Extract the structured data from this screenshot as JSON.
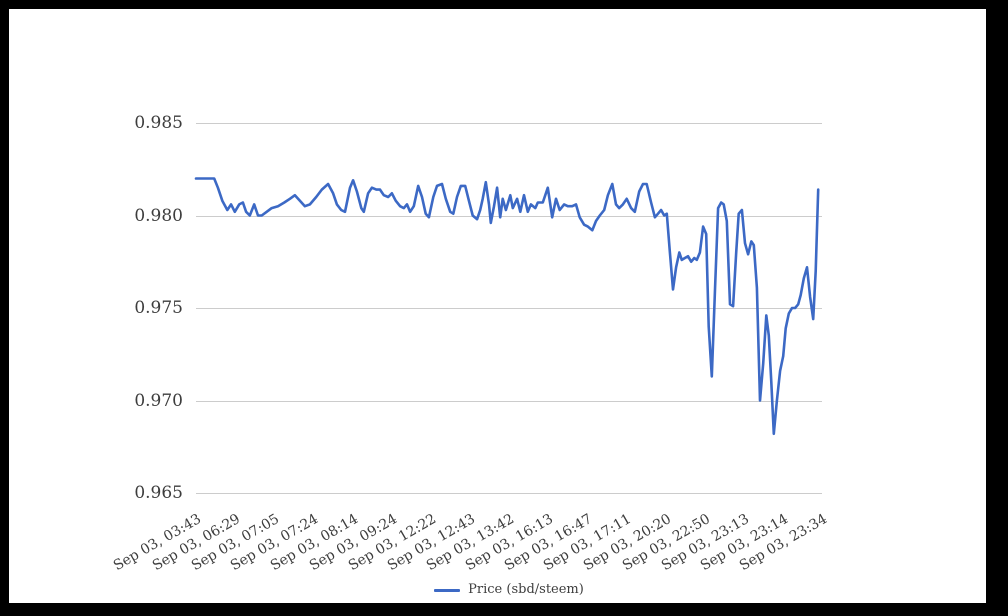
{
  "chart_data": {
    "type": "line",
    "title": "",
    "xlabel": "",
    "ylabel": "",
    "legend_label": "Price (sbd/steem)",
    "legend_position": "bottom-center",
    "grid": "horizontal-only",
    "ylim": [
      0.965,
      0.9875
    ],
    "y_axis": {
      "ticks": [
        0.985,
        0.98,
        0.975,
        0.97,
        0.965
      ],
      "tick_labels": [
        "0.985",
        "0.980",
        "0.975",
        "0.970",
        "0.965"
      ]
    },
    "x_axis": {
      "tick_labels": [
        "Sep 03, 03:43",
        "Sep 03, 06:29",
        "Sep 03, 07:05",
        "Sep 03, 07:24",
        "Sep 03, 08:14",
        "Sep 03, 09:24",
        "Sep 03, 12:22",
        "Sep 03, 12:43",
        "Sep 03, 13:42",
        "Sep 03, 16:13",
        "Sep 03, 16:47",
        "Sep 03, 17:11",
        "Sep 03, 20:20",
        "Sep 03, 22:50",
        "Sep 03, 23:13",
        "Sep 03, 23:14",
        "Sep 03, 23:34"
      ],
      "label_rotation_deg": -30
    },
    "series": [
      {
        "name": "Price (sbd/steem)",
        "color": "#3c69c5",
        "points": [
          [
            0,
            0.982
          ],
          [
            2.9,
            0.982
          ],
          [
            3.5,
            0.9815
          ],
          [
            4.2,
            0.9808
          ],
          [
            5,
            0.9803
          ],
          [
            5.6,
            0.9806
          ],
          [
            6.2,
            0.9802
          ],
          [
            6.9,
            0.9806
          ],
          [
            7.5,
            0.9807
          ],
          [
            8,
            0.9802
          ],
          [
            8.6,
            0.98
          ],
          [
            9.3,
            0.9806
          ],
          [
            9.9,
            0.98
          ],
          [
            10.5,
            0.98
          ],
          [
            11.3,
            0.9802
          ],
          [
            12.1,
            0.9804
          ],
          [
            13.1,
            0.9805
          ],
          [
            14.1,
            0.9807
          ],
          [
            15,
            0.9809
          ],
          [
            15.8,
            0.9811
          ],
          [
            16.6,
            0.9808
          ],
          [
            17.4,
            0.9805
          ],
          [
            18.2,
            0.9806
          ],
          [
            19.2,
            0.981
          ],
          [
            20.1,
            0.9814
          ],
          [
            21.1,
            0.9817
          ],
          [
            21.9,
            0.9812
          ],
          [
            22.5,
            0.9806
          ],
          [
            23.2,
            0.9803
          ],
          [
            23.8,
            0.9802
          ],
          [
            24.6,
            0.9815
          ],
          [
            25.1,
            0.9819
          ],
          [
            25.7,
            0.9813
          ],
          [
            26.4,
            0.9804
          ],
          [
            26.8,
            0.9802
          ],
          [
            27.5,
            0.9812
          ],
          [
            28.1,
            0.9815
          ],
          [
            28.8,
            0.9814
          ],
          [
            29.4,
            0.9814
          ],
          [
            30,
            0.9811
          ],
          [
            30.7,
            0.981
          ],
          [
            31.3,
            0.9812
          ],
          [
            31.9,
            0.9808
          ],
          [
            32.6,
            0.9805
          ],
          [
            33.2,
            0.9804
          ],
          [
            33.7,
            0.9806
          ],
          [
            34.2,
            0.9802
          ],
          [
            34.8,
            0.9805
          ],
          [
            35.5,
            0.9816
          ],
          [
            36.1,
            0.981
          ],
          [
            36.7,
            0.9801
          ],
          [
            37.2,
            0.9799
          ],
          [
            37.9,
            0.981
          ],
          [
            38.5,
            0.9816
          ],
          [
            39.3,
            0.9817
          ],
          [
            39.9,
            0.9809
          ],
          [
            40.6,
            0.9802
          ],
          [
            41.1,
            0.9801
          ],
          [
            41.7,
            0.981
          ],
          [
            42.3,
            0.9816
          ],
          [
            43,
            0.9816
          ],
          [
            43.6,
            0.9808
          ],
          [
            44.2,
            0.98
          ],
          [
            44.9,
            0.9798
          ],
          [
            45.4,
            0.9803
          ],
          [
            45.8,
            0.9809
          ],
          [
            46.3,
            0.9818
          ],
          [
            46.8,
            0.9806
          ],
          [
            47.1,
            0.9796
          ],
          [
            47.6,
            0.9805
          ],
          [
            48.1,
            0.9815
          ],
          [
            48.6,
            0.9799
          ],
          [
            49,
            0.9809
          ],
          [
            49.5,
            0.9803
          ],
          [
            50.2,
            0.9811
          ],
          [
            50.6,
            0.9804
          ],
          [
            51.3,
            0.9809
          ],
          [
            51.8,
            0.9802
          ],
          [
            52.4,
            0.9811
          ],
          [
            53,
            0.9802
          ],
          [
            53.5,
            0.9806
          ],
          [
            54.2,
            0.9804
          ],
          [
            54.6,
            0.9807
          ],
          [
            55.4,
            0.9807
          ],
          [
            56.2,
            0.9815
          ],
          [
            56.9,
            0.9799
          ],
          [
            57.5,
            0.9809
          ],
          [
            58.1,
            0.9803
          ],
          [
            58.8,
            0.9806
          ],
          [
            59.4,
            0.9805
          ],
          [
            60.1,
            0.9805
          ],
          [
            60.7,
            0.9806
          ],
          [
            61.3,
            0.9799
          ],
          [
            62,
            0.9795
          ],
          [
            62.6,
            0.9794
          ],
          [
            63.3,
            0.9792
          ],
          [
            63.9,
            0.9797
          ],
          [
            64.5,
            0.98
          ],
          [
            65.2,
            0.9803
          ],
          [
            65.8,
            0.9811
          ],
          [
            66.5,
            0.9817
          ],
          [
            67.1,
            0.9806
          ],
          [
            67.6,
            0.9804
          ],
          [
            68.2,
            0.9806
          ],
          [
            68.8,
            0.9809
          ],
          [
            69.5,
            0.9804
          ],
          [
            70.1,
            0.9802
          ],
          [
            70.8,
            0.9813
          ],
          [
            71.4,
            0.9817
          ],
          [
            72,
            0.9817
          ],
          [
            72.7,
            0.9807
          ],
          [
            73.3,
            0.9799
          ],
          [
            73.8,
            0.9801
          ],
          [
            74.3,
            0.9803
          ],
          [
            74.8,
            0.98
          ],
          [
            75.2,
            0.9801
          ],
          [
            75.7,
            0.978
          ],
          [
            76.2,
            0.976
          ],
          [
            76.7,
            0.9772
          ],
          [
            77.2,
            0.978
          ],
          [
            77.6,
            0.9776
          ],
          [
            78.1,
            0.9777
          ],
          [
            78.6,
            0.9778
          ],
          [
            79.1,
            0.9775
          ],
          [
            79.6,
            0.9777
          ],
          [
            80,
            0.9776
          ],
          [
            80.5,
            0.978
          ],
          [
            81,
            0.9794
          ],
          [
            81.5,
            0.979
          ],
          [
            81.9,
            0.974
          ],
          [
            82.4,
            0.9713
          ],
          [
            82.9,
            0.976
          ],
          [
            83.4,
            0.9804
          ],
          [
            83.9,
            0.9807
          ],
          [
            84.3,
            0.9806
          ],
          [
            84.8,
            0.9797
          ],
          [
            85.3,
            0.9752
          ],
          [
            85.8,
            0.9751
          ],
          [
            86.3,
            0.978
          ],
          [
            86.7,
            0.9801
          ],
          [
            87.2,
            0.9803
          ],
          [
            87.7,
            0.9785
          ],
          [
            88.2,
            0.9779
          ],
          [
            88.7,
            0.9786
          ],
          [
            89.1,
            0.9784
          ],
          [
            89.6,
            0.9761
          ],
          [
            90.1,
            0.97
          ],
          [
            90.6,
            0.972
          ],
          [
            91.1,
            0.9746
          ],
          [
            91.5,
            0.9735
          ],
          [
            91.9,
            0.971
          ],
          [
            92.3,
            0.9682
          ],
          [
            92.8,
            0.97
          ],
          [
            93.3,
            0.9716
          ],
          [
            93.8,
            0.9724
          ],
          [
            94.2,
            0.9739
          ],
          [
            94.7,
            0.9747
          ],
          [
            95.2,
            0.975
          ],
          [
            95.7,
            0.975
          ],
          [
            96.2,
            0.9752
          ],
          [
            96.6,
            0.9757
          ],
          [
            97.1,
            0.9766
          ],
          [
            97.6,
            0.9772
          ],
          [
            98.1,
            0.9756
          ],
          [
            98.6,
            0.9744
          ],
          [
            99,
            0.977
          ],
          [
            99.4,
            0.9814
          ]
        ]
      }
    ],
    "colors": {
      "line": "#3c69c5",
      "grid": "#cccccc",
      "axis_text": "#3d3d3d",
      "frame": "#000000",
      "background": "#ffffff"
    }
  }
}
